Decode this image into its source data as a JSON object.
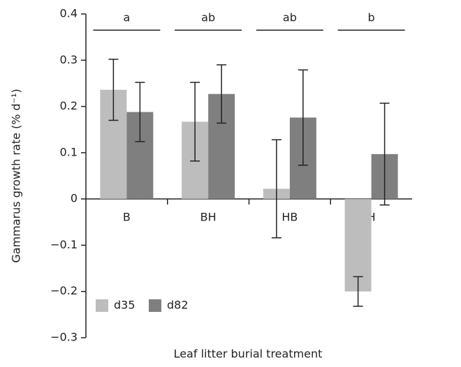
{
  "chart_data": {
    "type": "bar",
    "xlabel": "Leaf litter burial treatment",
    "ylabel": "Gammarus growth rate (% d⁻¹)",
    "categories": [
      "B",
      "BH",
      "HB",
      "H"
    ],
    "series": [
      {
        "name": "d35",
        "color": "#bdbdbd",
        "values": [
          0.236,
          0.167,
          0.022,
          -0.2
        ],
        "errors": [
          0.066,
          0.085,
          0.106,
          0.032
        ]
      },
      {
        "name": "d82",
        "color": "#7f7f7f",
        "values": [
          0.188,
          0.227,
          0.176,
          0.097
        ],
        "errors": [
          0.064,
          0.063,
          0.103,
          0.11
        ]
      }
    ],
    "group_letters": [
      "a",
      "ab",
      "ab",
      "b"
    ],
    "ylim": [
      -0.3,
      0.4
    ],
    "yticks": [
      {
        "value": 0.4,
        "label": "0.4"
      },
      {
        "value": 0.3,
        "label": "0.3"
      },
      {
        "value": 0.2,
        "label": "0.2"
      },
      {
        "value": 0.1,
        "label": "0.1"
      },
      0,
      {
        "value": -0.1,
        "label": "−0.1"
      },
      {
        "value": -0.2,
        "label": "−0.2"
      },
      {
        "value": -0.3,
        "label": "−0.3"
      }
    ],
    "legend": "lower left"
  }
}
